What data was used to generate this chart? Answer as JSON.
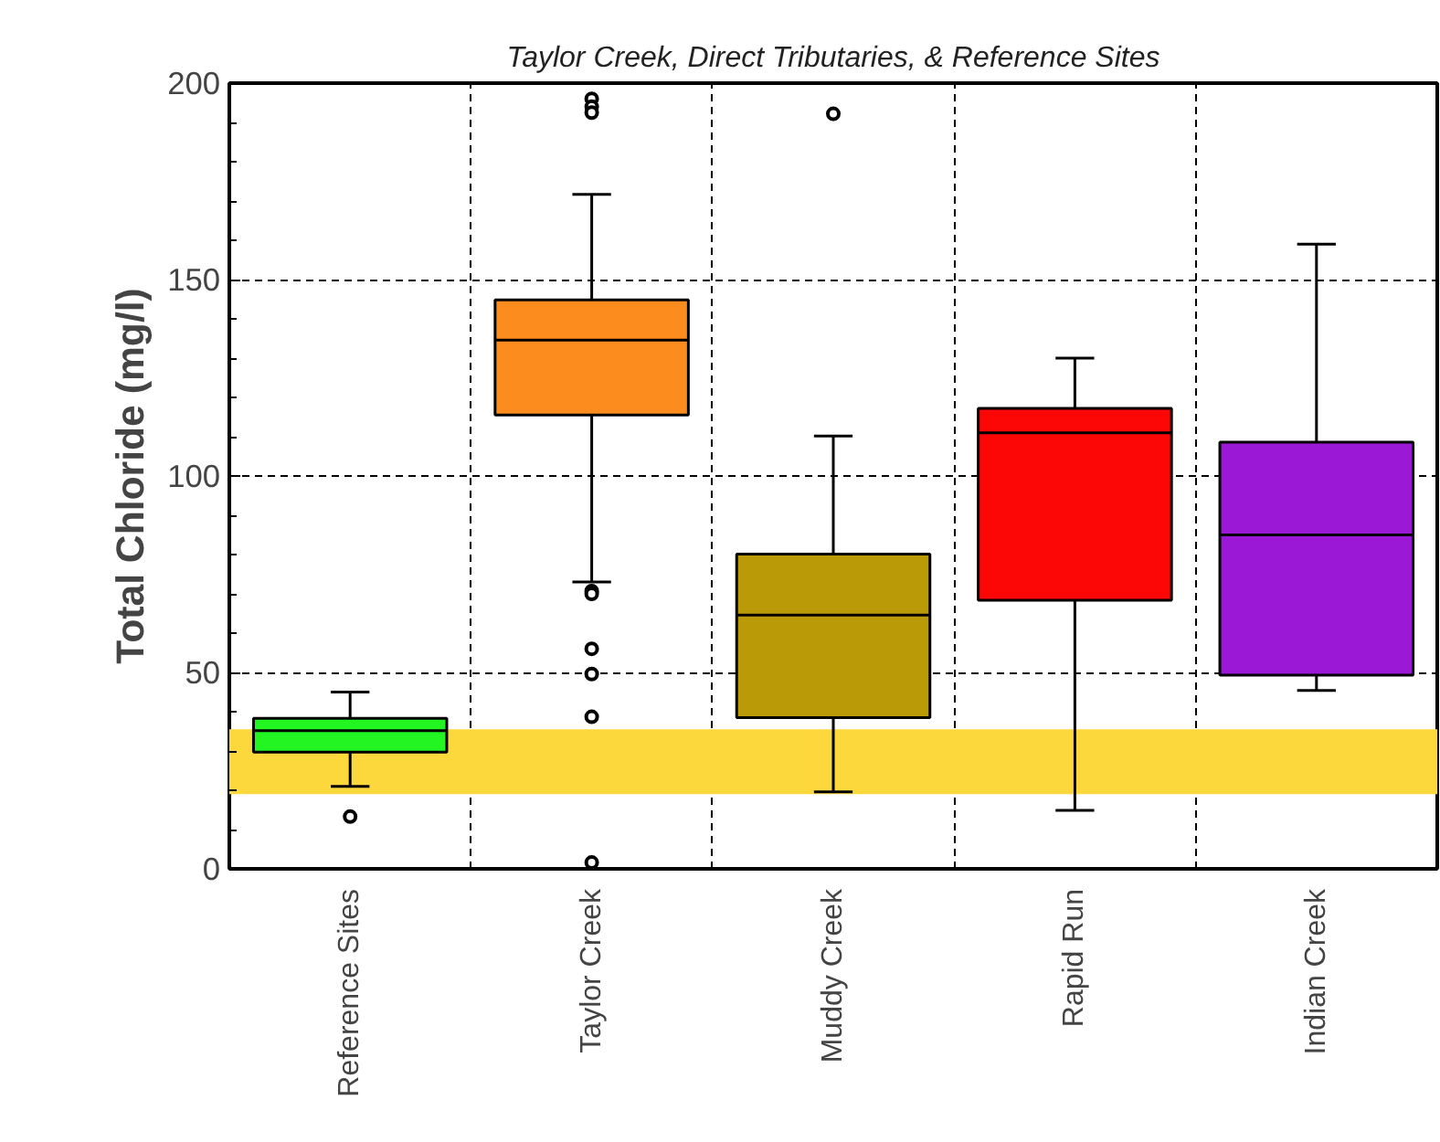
{
  "chart_data": {
    "type": "box",
    "title": "Taylor Creek, Direct Tributaries, & Reference Sites",
    "ylabel": "Total Chloride (mg/l)",
    "categories": [
      "Reference Sites",
      "Taylor Creek",
      "Muddy Creek",
      "Rapid Run",
      "Indian Creek"
    ],
    "colors": [
      "#22f522",
      "#fd8c1e",
      "#bb9a08",
      "#fd0606",
      "#9a18d6"
    ],
    "boxes": [
      {
        "low": 21,
        "q1": 29.7,
        "median": 35.2,
        "q3": 38.3,
        "high": 45,
        "outliers": [
          13.3
        ]
      },
      {
        "low": 73,
        "q1": 115.5,
        "median": 134.6,
        "q3": 144.8,
        "high": 171.7,
        "outliers": [
          196,
          194,
          192.5,
          70.7,
          70,
          56,
          49.6,
          38.7,
          1.6
        ]
      },
      {
        "low": 19.6,
        "q1": 38.5,
        "median": 64.6,
        "q3": 80.1,
        "high": 110.2,
        "outliers": [
          192.2
        ]
      },
      {
        "low": 14.9,
        "q1": 68.4,
        "median": 111,
        "q3": 117.2,
        "high": 130
      },
      {
        "low": 45.4,
        "q1": 49.3,
        "median": 85,
        "q3": 108.6,
        "high": 159
      }
    ],
    "ylim": [
      0,
      200
    ],
    "yticks": [
      0,
      50,
      100,
      150,
      200
    ],
    "grid": true,
    "marker": "circle",
    "bands": [
      {
        "axis": "y",
        "from": 19,
        "to": 35.5,
        "color": "#fdd83c"
      }
    ]
  }
}
